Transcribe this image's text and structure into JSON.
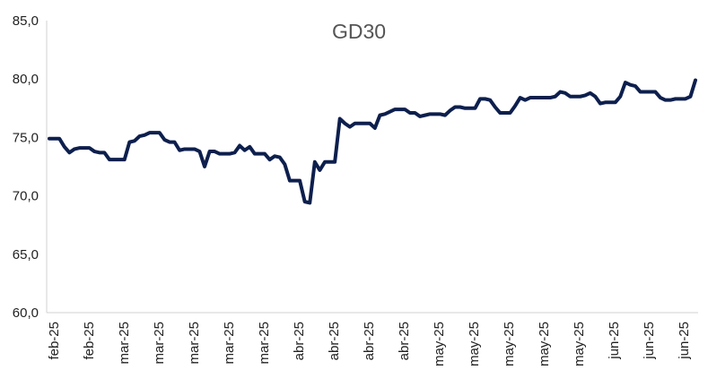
{
  "chart_data": {
    "type": "line",
    "title": "GD30",
    "xlabel": "",
    "ylabel": "",
    "ylim": [
      60,
      85
    ],
    "y_ticks": [
      "60,0",
      "65,0",
      "70,0",
      "75,0",
      "80,0",
      "85,0"
    ],
    "y_tick_values": [
      60,
      65,
      70,
      75,
      80,
      85
    ],
    "x_tick_labels": [
      "feb-25",
      "feb-25",
      "mar-25",
      "mar-25",
      "mar-25",
      "mar-25",
      "mar-25",
      "abr-25",
      "abr-25",
      "abr-25",
      "abr-25",
      "may-25",
      "may-25",
      "may-25",
      "may-25",
      "may-25",
      "jun-25",
      "jun-25",
      "jun-25"
    ],
    "grid": false,
    "legend": "none",
    "line_color": "#0d1f4d",
    "series": [
      {
        "values": [
          74.9,
          74.9,
          74.9,
          74.2,
          73.7,
          74.0,
          74.1,
          74.1,
          74.1,
          73.8,
          73.7,
          73.7,
          73.1,
          73.1,
          73.1,
          73.1,
          74.6,
          74.7,
          75.1,
          75.2,
          75.4,
          75.4,
          75.4,
          74.8,
          74.6,
          74.6,
          73.9,
          74.0,
          74.0,
          74.0,
          73.8,
          72.5,
          73.8,
          73.8,
          73.6,
          73.6,
          73.6,
          73.7,
          74.3,
          73.9,
          74.2,
          73.6,
          73.6,
          73.6,
          73.1,
          73.4,
          73.3,
          72.7,
          71.3,
          71.3,
          71.3,
          69.5,
          69.4,
          72.9,
          72.2,
          72.9,
          72.9,
          72.9,
          76.6,
          76.2,
          75.9,
          76.2,
          76.2,
          76.2,
          76.2,
          75.8,
          76.9,
          77.0,
          77.2,
          77.4,
          77.4,
          77.4,
          77.1,
          77.1,
          76.8,
          76.9,
          77.0,
          77.0,
          77.0,
          76.9,
          77.3,
          77.6,
          77.6,
          77.5,
          77.5,
          77.5,
          78.3,
          78.3,
          78.2,
          77.6,
          77.1,
          77.1,
          77.1,
          77.7,
          78.4,
          78.2,
          78.4,
          78.4,
          78.4,
          78.4,
          78.4,
          78.5,
          78.9,
          78.8,
          78.5,
          78.5,
          78.5,
          78.6,
          78.8,
          78.5,
          77.9,
          78.0,
          78.0,
          78.0,
          78.5,
          79.7,
          79.5,
          79.4,
          78.9,
          78.9,
          78.9,
          78.9,
          78.4,
          78.2,
          78.2,
          78.3,
          78.3,
          78.3,
          78.5,
          79.9
        ]
      }
    ]
  }
}
